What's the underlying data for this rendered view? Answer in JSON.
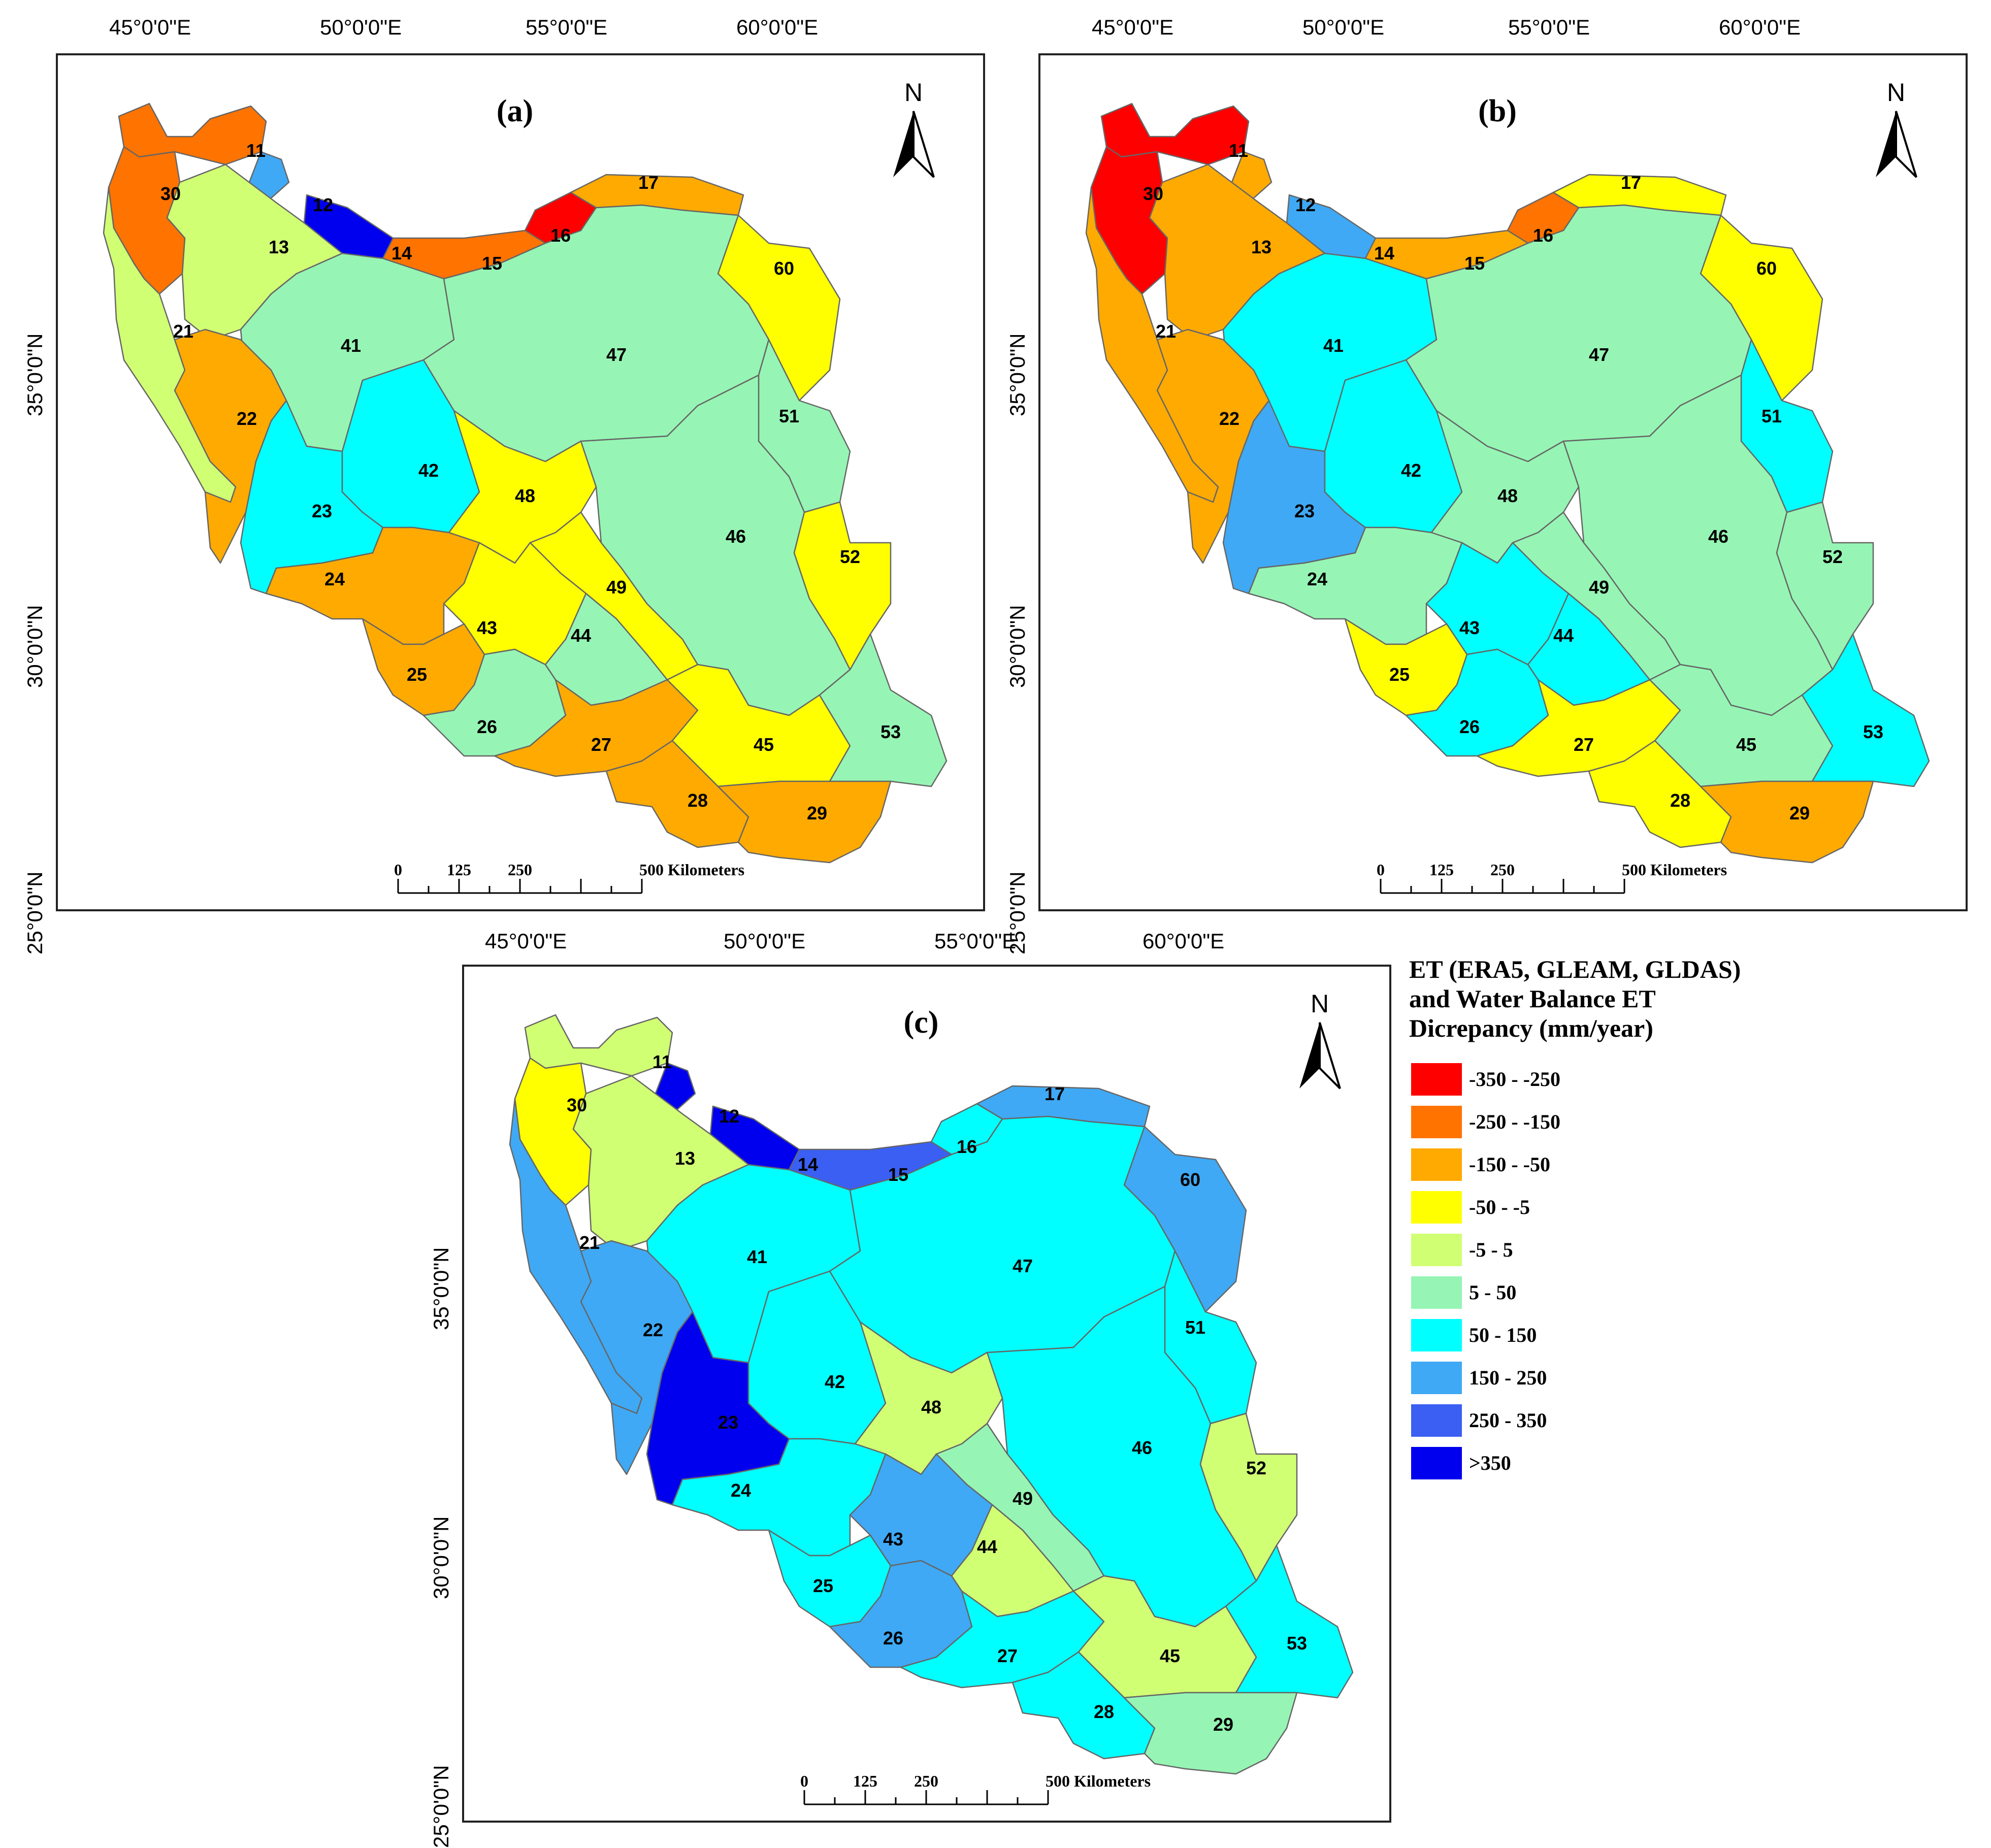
{
  "panels": [
    {
      "id": "a",
      "label": "(a)",
      "lon_labels": [
        "45°0'0\"E",
        "50°0'0\"E",
        "55°0'0\"E",
        "60°0'0\"E"
      ],
      "lat_labels": [
        "35°0'0\"N",
        "30°0'0\"N",
        "25°0'0\"N"
      ],
      "scale": {
        "ticks": [
          "0",
          "125",
          "250"
        ],
        "end": "500 Kilometers"
      },
      "north": "N",
      "regions": [
        {
          "id": "11",
          "cls": "-250 - -150"
        },
        {
          "id": "30",
          "cls": "-250 - -150"
        },
        {
          "id": "12",
          "cls": "150 - 250"
        },
        {
          "id": "14",
          "cls": ">350"
        },
        {
          "id": "16",
          "cls": "-350 - -250"
        },
        {
          "id": "15",
          "cls": "-250 - -150"
        },
        {
          "id": "17",
          "cls": "-150 - -50"
        },
        {
          "id": "60",
          "cls": "-50 - -5"
        },
        {
          "id": "13",
          "cls": "-5 - 5"
        },
        {
          "id": "21",
          "cls": "-5 - 5"
        },
        {
          "id": "41",
          "cls": "5 - 50"
        },
        {
          "id": "47",
          "cls": "5 - 50"
        },
        {
          "id": "51",
          "cls": "5 - 50"
        },
        {
          "id": "22",
          "cls": "-150 - -50"
        },
        {
          "id": "23",
          "cls": "50 - 150"
        },
        {
          "id": "42",
          "cls": "50 - 150"
        },
        {
          "id": "48",
          "cls": "-50 - -5"
        },
        {
          "id": "49",
          "cls": "-50 - -5"
        },
        {
          "id": "46",
          "cls": "5 - 50"
        },
        {
          "id": "52",
          "cls": "-50 - -5"
        },
        {
          "id": "24",
          "cls": "-150 - -50"
        },
        {
          "id": "43",
          "cls": "-50 - -5"
        },
        {
          "id": "44",
          "cls": "5 - 50"
        },
        {
          "id": "25",
          "cls": "-150 - -50"
        },
        {
          "id": "26",
          "cls": "5 - 50"
        },
        {
          "id": "27",
          "cls": "-150 - -50"
        },
        {
          "id": "45",
          "cls": "-50 - -5"
        },
        {
          "id": "53",
          "cls": "5 - 50"
        },
        {
          "id": "28",
          "cls": "-150 - -50"
        },
        {
          "id": "29",
          "cls": "-150 - -50"
        }
      ]
    },
    {
      "id": "b",
      "label": "(b)",
      "lon_labels": [
        "45°0'0\"E",
        "50°0'0\"E",
        "55°0'0\"E",
        "60°0'0\"E"
      ],
      "lat_labels": [
        "35°0'0\"N",
        "30°0'0\"N",
        "25°0'0\"N"
      ],
      "scale": {
        "ticks": [
          "0",
          "125",
          "250"
        ],
        "end": "500 Kilometers"
      },
      "north": "N",
      "regions": [
        {
          "id": "11",
          "cls": "-350 - -250"
        },
        {
          "id": "30",
          "cls": "-350 - -250"
        },
        {
          "id": "12",
          "cls": "-150 - -50"
        },
        {
          "id": "14",
          "cls": "150 - 250"
        },
        {
          "id": "16",
          "cls": "-250 - -150"
        },
        {
          "id": "15",
          "cls": "-150 - -50"
        },
        {
          "id": "17",
          "cls": "-50 - -5"
        },
        {
          "id": "60",
          "cls": "-50 - -5"
        },
        {
          "id": "13",
          "cls": "-150 - -50"
        },
        {
          "id": "21",
          "cls": "-150 - -50"
        },
        {
          "id": "41",
          "cls": "50 - 150"
        },
        {
          "id": "47",
          "cls": "5 - 50"
        },
        {
          "id": "51",
          "cls": "50 - 150"
        },
        {
          "id": "22",
          "cls": "-150 - -50"
        },
        {
          "id": "23",
          "cls": "150 - 250"
        },
        {
          "id": "42",
          "cls": "50 - 150"
        },
        {
          "id": "48",
          "cls": "5 - 50"
        },
        {
          "id": "49",
          "cls": "5 - 50"
        },
        {
          "id": "46",
          "cls": "5 - 50"
        },
        {
          "id": "52",
          "cls": "5 - 50"
        },
        {
          "id": "24",
          "cls": "5 - 50"
        },
        {
          "id": "43",
          "cls": "50 - 150"
        },
        {
          "id": "44",
          "cls": "50 - 150"
        },
        {
          "id": "25",
          "cls": "-50 - -5"
        },
        {
          "id": "26",
          "cls": "50 - 150"
        },
        {
          "id": "27",
          "cls": "-50 - -5"
        },
        {
          "id": "45",
          "cls": "5 - 50"
        },
        {
          "id": "53",
          "cls": "50 - 150"
        },
        {
          "id": "28",
          "cls": "-50 - -5"
        },
        {
          "id": "29",
          "cls": "-150 - -50"
        }
      ]
    },
    {
      "id": "c",
      "label": "(c)",
      "lon_labels": [
        "45°0'0\"E",
        "50°0'0\"E",
        "55°0'0\"E",
        "60°0'0\"E"
      ],
      "lat_labels": [
        "35°0'0\"N",
        "30°0'0\"N",
        "25°0'0\"N"
      ],
      "scale": {
        "ticks": [
          "0",
          "125",
          "250"
        ],
        "end": "500 Kilometers"
      },
      "north": "N",
      "regions": [
        {
          "id": "11",
          "cls": "-5 - 5"
        },
        {
          "id": "30",
          "cls": "-50 - -5"
        },
        {
          "id": "12",
          "cls": ">350"
        },
        {
          "id": "14",
          "cls": ">350"
        },
        {
          "id": "16",
          "cls": "50 - 150"
        },
        {
          "id": "15",
          "cls": "250 - 350"
        },
        {
          "id": "17",
          "cls": "150 - 250"
        },
        {
          "id": "60",
          "cls": "150 - 250"
        },
        {
          "id": "13",
          "cls": "-5 - 5"
        },
        {
          "id": "21",
          "cls": "150 - 250"
        },
        {
          "id": "41",
          "cls": "50 - 150"
        },
        {
          "id": "47",
          "cls": "50 - 150"
        },
        {
          "id": "51",
          "cls": "50 - 150"
        },
        {
          "id": "22",
          "cls": "150 - 250"
        },
        {
          "id": "23",
          "cls": ">350"
        },
        {
          "id": "42",
          "cls": "50 - 150"
        },
        {
          "id": "48",
          "cls": "-5 - 5"
        },
        {
          "id": "49",
          "cls": "5 - 50"
        },
        {
          "id": "46",
          "cls": "50 - 150"
        },
        {
          "id": "52",
          "cls": "-5 - 5"
        },
        {
          "id": "24",
          "cls": "50 - 150"
        },
        {
          "id": "43",
          "cls": "150 - 250"
        },
        {
          "id": "44",
          "cls": "-5 - 5"
        },
        {
          "id": "25",
          "cls": "50 - 150"
        },
        {
          "id": "26",
          "cls": "150 - 250"
        },
        {
          "id": "27",
          "cls": "50 - 150"
        },
        {
          "id": "45",
          "cls": "-5 - 5"
        },
        {
          "id": "53",
          "cls": "50 - 150"
        },
        {
          "id": "28",
          "cls": "50 - 150"
        },
        {
          "id": "29",
          "cls": "5 - 50"
        }
      ]
    }
  ],
  "legend": {
    "title_lines": [
      "ET (ERA5, GLEAM, GLDAS)",
      "and Water Balance ET",
      "Dicrepancy (mm/year)"
    ],
    "classes": [
      {
        "label": "-350 - -250",
        "color": "#ff0000"
      },
      {
        "label": "-250 - -150",
        "color": "#ff7300"
      },
      {
        "label": "-150 - -50",
        "color": "#ffaa00"
      },
      {
        "label": "-50 - -5",
        "color": "#ffff00"
      },
      {
        "label": "-5 - 5",
        "color": "#d1ff73"
      },
      {
        "label": "5 - 50",
        "color": "#96f5b4"
      },
      {
        "label": "50 - 150",
        "color": "#00ffff"
      },
      {
        "label": "150 - 250",
        "color": "#3fa9f5"
      },
      {
        "label": "250 - 350",
        "color": "#3a5ff2"
      },
      {
        "label": ">350",
        "color": "#0000ee"
      }
    ]
  }
}
